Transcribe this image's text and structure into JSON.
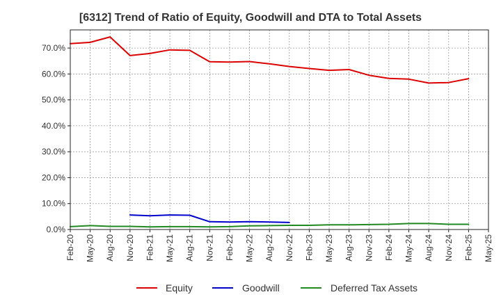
{
  "chart_data": {
    "type": "line",
    "title": "[6312]  Trend of Ratio of Equity, Goodwill and DTA to Total Assets",
    "xlabel": "",
    "ylabel": "",
    "ylim": [
      0,
      77
    ],
    "yticks": [
      0,
      10,
      20,
      30,
      40,
      50,
      60,
      70
    ],
    "ytick_labels": [
      "0.0%",
      "10.0%",
      "20.0%",
      "30.0%",
      "40.0%",
      "50.0%",
      "60.0%",
      "70.0%"
    ],
    "x": [
      "Feb-20",
      "May-20",
      "Aug-20",
      "Nov-20",
      "Feb-21",
      "May-21",
      "Aug-21",
      "Nov-21",
      "Feb-22",
      "May-22",
      "Aug-22",
      "Nov-22",
      "Feb-23",
      "May-23",
      "Aug-23",
      "Nov-23",
      "Feb-24",
      "May-24",
      "Aug-24",
      "Nov-24",
      "Feb-25",
      "May-25"
    ],
    "grid": true,
    "legend_position": "bottom",
    "series": [
      {
        "name": "Equity",
        "color": "#dd0000",
        "values": [
          71.7,
          72.2,
          74.3,
          67.1,
          67.9,
          69.3,
          69.1,
          64.7,
          64.6,
          64.8,
          63.9,
          62.9,
          62.1,
          61.4,
          61.7,
          59.5,
          58.3,
          58.0,
          56.5,
          56.7,
          58.2,
          null
        ]
      },
      {
        "name": "Goodwill",
        "color": "#0000cc",
        "values": [
          null,
          null,
          null,
          5.6,
          5.3,
          5.6,
          5.5,
          3.0,
          2.9,
          3.0,
          2.9,
          2.7,
          null,
          null,
          null,
          null,
          null,
          null,
          null,
          null,
          null,
          null
        ]
      },
      {
        "name": "Deferred Tax Assets",
        "color": "#228822",
        "values": [
          1.1,
          1.5,
          1.2,
          1.2,
          1.0,
          1.1,
          1.1,
          1.0,
          1.1,
          1.4,
          1.5,
          1.6,
          1.6,
          1.8,
          1.8,
          1.9,
          2.0,
          2.3,
          2.3,
          2.0,
          2.0,
          null
        ]
      }
    ]
  }
}
